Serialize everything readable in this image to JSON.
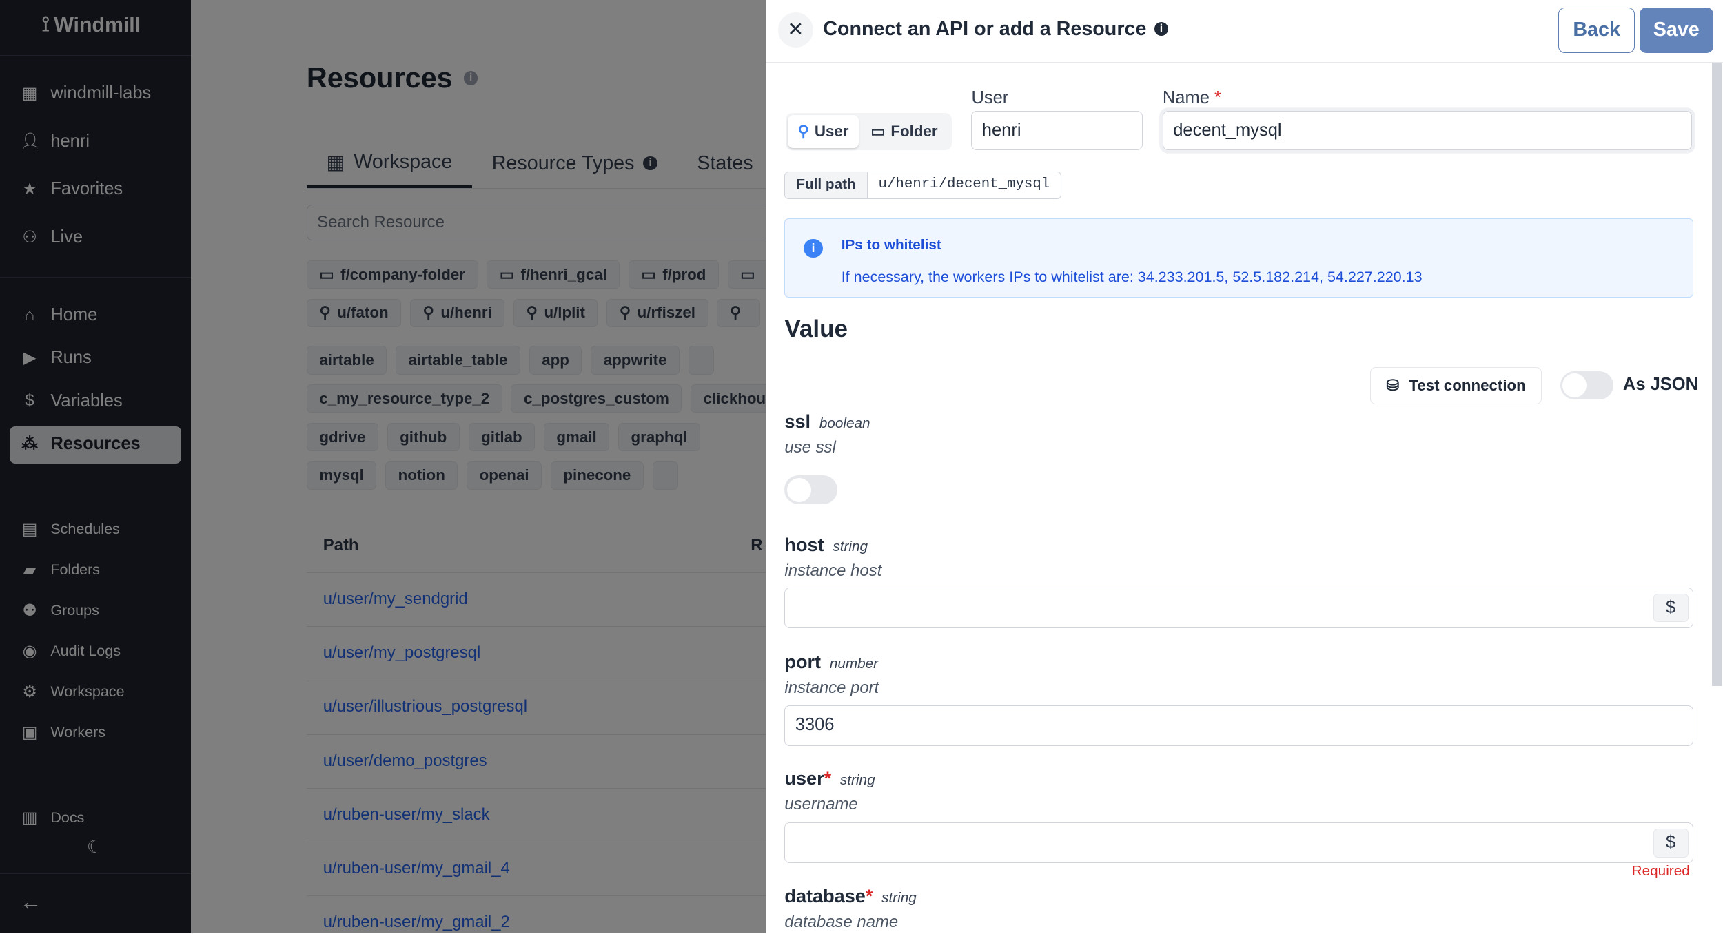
{
  "sidebar": {
    "brand": "Windmill",
    "top_items": [
      {
        "label": "windmill-labs",
        "icon": "building-icon"
      },
      {
        "label": "henri",
        "icon": "user-icon"
      },
      {
        "label": "Favorites",
        "icon": "star-icon"
      },
      {
        "label": "Live",
        "icon": "users-icon"
      }
    ],
    "main_items": [
      {
        "label": "Home",
        "icon": "home-icon"
      },
      {
        "label": "Runs",
        "icon": "play-icon"
      },
      {
        "label": "Variables",
        "icon": "dollar-icon"
      },
      {
        "label": "Resources",
        "icon": "boxes-icon",
        "active": true
      }
    ],
    "secondary_items": [
      {
        "label": "Schedules",
        "icon": "calendar-icon"
      },
      {
        "label": "Folders",
        "icon": "folder-icon"
      },
      {
        "label": "Groups",
        "icon": "groups-icon"
      },
      {
        "label": "Audit Logs",
        "icon": "eye-icon"
      },
      {
        "label": "Workspace",
        "icon": "gear-icon"
      },
      {
        "label": "Workers",
        "icon": "robot-icon"
      }
    ],
    "docs": "Docs"
  },
  "main": {
    "title": "Resources",
    "tabs": [
      {
        "label": "Workspace"
      },
      {
        "label": "Resource Types"
      },
      {
        "label": "States"
      }
    ],
    "search_placeholder": "Search Resource",
    "chip_rows": [
      [
        "f/company-folder",
        "f/henri_gcal",
        "f/prod",
        ""
      ],
      [
        "u/faton",
        "u/henri",
        "u/lplit",
        "u/rfiszel",
        ""
      ],
      [
        "airtable",
        "airtable_table",
        "app",
        "appwrite",
        ""
      ],
      [
        "c_my_resource_type_2",
        "c_postgres_custom",
        "clickhouse"
      ],
      [
        "gdrive",
        "github",
        "gitlab",
        "gmail",
        "graphql"
      ],
      [
        "mysql",
        "notion",
        "openai",
        "pinecone",
        ""
      ]
    ],
    "table": {
      "headers": [
        "Path",
        "R"
      ],
      "rows": [
        "u/user/my_sendgrid",
        "u/user/my_postgresql",
        "u/user/illustrious_postgresql",
        "u/user/demo_postgres",
        "u/ruben-user/my_slack",
        "u/ruben-user/my_gmail_4",
        "u/ruben-user/my_gmail_2"
      ]
    }
  },
  "drawer": {
    "title": "Connect an API or add a Resource",
    "back": "Back",
    "save": "Save",
    "owner_toggle": {
      "user": "User",
      "folder": "Folder",
      "selected": "User"
    },
    "user_label": "User",
    "user_value": "henri",
    "name_label": "Name",
    "name_required": "*",
    "name_value": "decent_mysql",
    "full_path_label": "Full path",
    "full_path": "u/henri/decent_mysql",
    "info": {
      "title": "IPs to whitelist",
      "text": "If necessary, the workers IPs to whitelist are: 34.233.201.5, 52.5.182.214, 54.227.220.13"
    },
    "value_heading": "Value",
    "test_connection": "Test connection",
    "as_json": "As JSON",
    "as_json_on": false,
    "fields": [
      {
        "name": "ssl",
        "type": "boolean",
        "desc": "use ssl",
        "value": false
      },
      {
        "name": "host",
        "type": "string",
        "desc": "instance host",
        "value": ""
      },
      {
        "name": "port",
        "type": "number",
        "desc": "instance port",
        "value": "3306"
      },
      {
        "name": "user",
        "required": "*",
        "type": "string",
        "desc": "username",
        "value": "",
        "error": "Required"
      },
      {
        "name": "database",
        "required": "*",
        "type": "string",
        "desc": "database name"
      }
    ],
    "colors": {
      "save": "#6384bb",
      "link": "#2563eb",
      "info_bg": "#eff6ff",
      "error": "#dc2626"
    }
  }
}
